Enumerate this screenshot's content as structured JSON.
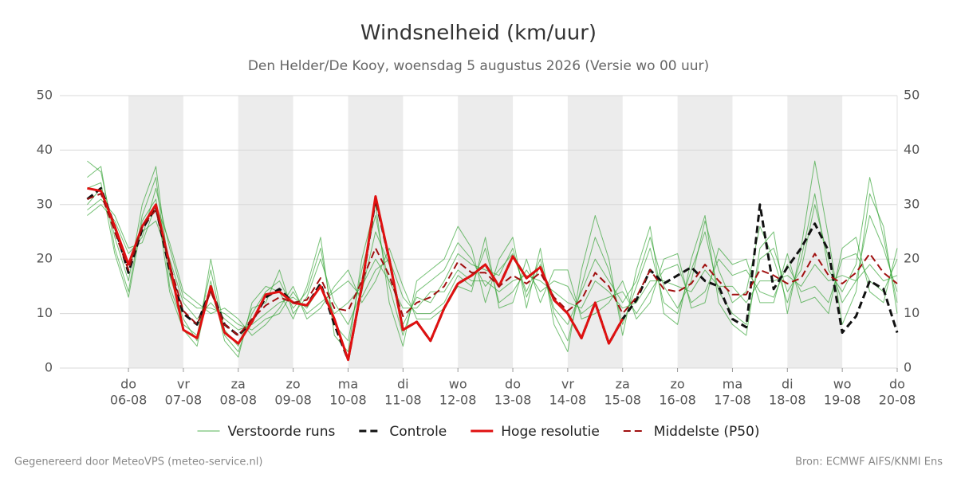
{
  "chart_data": {
    "type": "line",
    "title": "Windsnelheid (km/uur)",
    "subtitle": "Den Helder/De Kooy, woensdag  5 augustus 2026 (Versie wo 00 uur)",
    "footer_left": "Gegenereerd door MeteoVPS (meteo-service.nl)",
    "footer_right": "Bron: ECMWF AIFS/KNMI Ens",
    "x": [
      6,
      12,
      18,
      24,
      30,
      36,
      42,
      48,
      54,
      60,
      66,
      72,
      78,
      84,
      90,
      96,
      102,
      108,
      114,
      120,
      126,
      132,
      138,
      144,
      150,
      156,
      162,
      168,
      174,
      180,
      186,
      192,
      198,
      204,
      210,
      216,
      222,
      228,
      234,
      240,
      246,
      252,
      258,
      264,
      270,
      276,
      282,
      288,
      294,
      300,
      306,
      312,
      318,
      324,
      330,
      336,
      342,
      348,
      354,
      360
    ],
    "xlim": [
      -6,
      360
    ],
    "xticks": [
      {
        "value": 24,
        "label": "do",
        "date": "06-08"
      },
      {
        "value": 48,
        "label": "vr",
        "date": "07-08"
      },
      {
        "value": 72,
        "label": "za",
        "date": "08-08"
      },
      {
        "value": 96,
        "label": "zo",
        "date": "09-08"
      },
      {
        "value": 120,
        "label": "ma",
        "date": "10-08"
      },
      {
        "value": 144,
        "label": "di",
        "date": "11-08"
      },
      {
        "value": 168,
        "label": "wo",
        "date": "12-08"
      },
      {
        "value": 192,
        "label": "do",
        "date": "13-08"
      },
      {
        "value": 216,
        "label": "vr",
        "date": "14-08"
      },
      {
        "value": 240,
        "label": "za",
        "date": "15-08"
      },
      {
        "value": 264,
        "label": "zo",
        "date": "16-08"
      },
      {
        "value": 288,
        "label": "ma",
        "date": "17-08"
      },
      {
        "value": 312,
        "label": "di",
        "date": "18-08"
      },
      {
        "value": 336,
        "label": "wo",
        "date": "19-08"
      },
      {
        "value": 360,
        "label": "do",
        "date": "20-08"
      }
    ],
    "ylim": [
      0,
      50
    ],
    "yticks": [
      0,
      10,
      20,
      30,
      40,
      50
    ],
    "grid": true,
    "day_shading": true,
    "ensemble": {
      "name": "Verstoorde runs",
      "color": "#2ca02c",
      "members": [
        [
          35,
          37,
          22,
          14,
          28,
          35,
          15,
          8,
          6,
          18,
          6,
          3,
          10,
          14,
          16,
          11,
          14,
          22,
          8,
          5,
          18,
          28,
          15,
          6,
          14,
          16,
          18,
          23,
          20,
          15,
          18,
          21,
          14,
          20,
          10,
          5,
          15,
          24,
          18,
          8,
          15,
          22,
          12,
          10,
          18,
          25,
          14,
          10,
          8,
          20,
          22,
          14,
          18,
          30,
          20,
          12,
          16,
          28,
          22,
          14
        ],
        [
          28,
          30,
          27,
          21,
          24,
          33,
          22,
          13,
          11,
          11,
          10,
          8,
          7,
          9,
          10,
          14,
          10,
          12,
          14,
          16,
          13,
          18,
          20,
          13,
          10,
          10,
          12,
          17,
          15,
          22,
          12,
          14,
          18,
          14,
          16,
          15,
          10,
          12,
          13,
          14,
          10,
          14,
          18,
          19,
          12,
          14,
          20,
          17,
          18,
          14,
          13,
          19,
          14,
          15,
          12,
          20,
          21,
          16,
          14,
          20
        ],
        [
          38,
          36,
          24,
          16,
          30,
          37,
          17,
          9,
          5,
          20,
          7,
          4,
          11,
          12,
          18,
          10,
          13,
          20,
          12,
          8,
          14,
          25,
          19,
          8,
          13,
          12,
          16,
          21,
          19,
          18,
          17,
          22,
          13,
          19,
          11,
          8,
          14,
          20,
          16,
          12,
          16,
          24,
          15,
          11,
          16,
          27,
          18,
          12,
          14,
          26,
          20,
          12,
          20,
          32,
          18,
          14,
          19,
          35,
          24,
          12
        ],
        [
          30,
          33,
          26,
          19,
          25,
          27,
          20,
          12,
          9,
          12,
          9,
          7,
          8,
          10,
          12,
          13,
          11,
          15,
          10,
          12,
          15,
          20,
          16,
          11,
          11,
          14,
          14,
          18,
          16,
          16,
          14,
          16,
          17,
          16,
          14,
          12,
          11,
          16,
          14,
          11,
          12,
          16,
          16,
          15,
          14,
          18,
          15,
          15,
          12,
          16,
          16,
          17,
          15,
          19,
          16,
          17,
          16,
          19,
          16,
          17
        ],
        [
          33,
          34,
          21,
          13,
          27,
          31,
          14,
          7,
          4,
          16,
          5,
          2,
          12,
          15,
          14,
          9,
          15,
          24,
          6,
          3,
          20,
          30,
          12,
          4,
          16,
          18,
          20,
          26,
          22,
          12,
          20,
          24,
          11,
          22,
          8,
          3,
          18,
          28,
          20,
          6,
          18,
          26,
          10,
          8,
          20,
          28,
          12,
          8,
          6,
          22,
          25,
          10,
          22,
          38,
          24,
          8,
          14,
          32,
          26,
          10
        ],
        [
          29,
          31,
          28,
          22,
          23,
          30,
          23,
          14,
          12,
          10,
          11,
          9,
          6,
          8,
          11,
          15,
          9,
          11,
          15,
          18,
          12,
          16,
          22,
          15,
          9,
          9,
          11,
          15,
          14,
          24,
          11,
          12,
          20,
          12,
          18,
          18,
          9,
          10,
          12,
          16,
          9,
          12,
          20,
          21,
          11,
          12,
          22,
          19,
          20,
          12,
          12,
          21,
          12,
          13,
          10,
          22,
          24,
          14,
          12,
          22
        ]
      ]
    },
    "series": [
      {
        "name": "Controle",
        "color": "#111111",
        "dashed": true,
        "width": 3,
        "values": [
          31,
          33,
          26,
          17.5,
          25.5,
          29.5,
          18,
          10,
          8,
          14.5,
          8,
          6,
          8.5,
          13,
          14.5,
          12,
          11.5,
          15.5,
          8,
          1.5,
          15,
          31,
          20,
          7,
          8.5,
          5,
          11,
          15.5,
          17,
          19,
          15,
          20.5,
          16.5,
          18.5,
          12.5,
          10,
          5.5,
          12,
          4.5,
          9,
          12.5,
          18,
          15.5,
          17,
          18.5,
          16,
          15,
          9,
          7.5,
          30,
          14.5,
          18.5,
          22,
          26.5,
          21.5,
          6.5,
          9.5,
          16,
          14.5,
          6.5
        ]
      },
      {
        "name": "Hoge resolutie",
        "color": "#e01010",
        "dashed": false,
        "width": 3,
        "values": [
          33,
          32.5,
          26,
          19,
          26,
          30,
          19,
          7,
          5.5,
          15,
          6.5,
          4.5,
          8.5,
          13.5,
          14,
          12,
          11.5,
          15,
          9,
          1.5,
          15,
          31.5,
          20,
          7,
          8.5,
          5,
          11,
          15.5,
          17,
          19,
          15,
          20.5,
          16.5,
          18.5,
          12.5,
          10,
          5.5,
          12,
          4.5,
          9,
          null,
          null,
          null,
          null,
          null,
          null,
          null,
          null,
          null,
          null,
          null,
          null,
          null,
          null,
          null,
          null,
          null,
          null,
          null,
          null
        ]
      },
      {
        "name": "Middelste (P50)",
        "color": "#a01010",
        "dashed": true,
        "width": 2,
        "values": [
          31,
          32,
          25,
          18,
          26,
          29,
          19,
          10.5,
          8,
          14,
          8,
          6,
          9,
          11.5,
          13,
          12,
          12.5,
          16.5,
          11,
          10.5,
          16,
          22,
          17,
          9.5,
          12,
          13,
          15,
          19.5,
          17.5,
          17.5,
          15,
          17,
          15.5,
          17.5,
          13,
          10.5,
          12.5,
          17.5,
          15,
          10,
          13,
          18,
          14.5,
          14,
          15.5,
          19,
          16,
          13.5,
          13.5,
          18,
          17,
          15.5,
          16.5,
          21,
          17,
          15.5,
          17.5,
          21,
          17.5,
          15.5
        ]
      }
    ]
  }
}
